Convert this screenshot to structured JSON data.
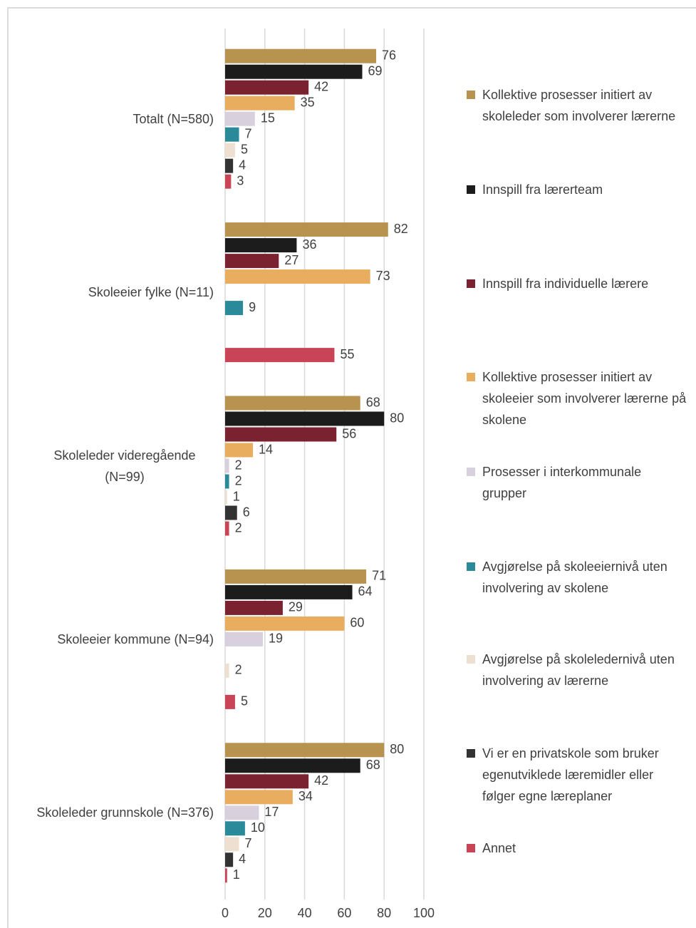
{
  "chart_data": {
    "type": "barh",
    "categories": [
      "Totalt (N=580)",
      "Skoleeier fylke (N=11)",
      "Skoleleder videregående (N=99)",
      "Skoleeier kommune (N=94)",
      "Skoleleder grunnskole (N=376)"
    ],
    "series": [
      {
        "name": "Kollektive prosesser initiert av skoleleder som involverer lærerne",
        "color": "#b8924f",
        "values": [
          76,
          82,
          68,
          71,
          80
        ]
      },
      {
        "name": "Innspill fra lærerteam",
        "color": "#1c1c1c",
        "values": [
          69,
          36,
          80,
          64,
          68
        ]
      },
      {
        "name": "Innspill fra individuelle lærere",
        "color": "#7b2230",
        "values": [
          42,
          27,
          56,
          29,
          42
        ]
      },
      {
        "name": "Kollektive prosesser initiert av skoleeier som involverer lærerne på skolene",
        "color": "#e8ad5e",
        "values": [
          35,
          73,
          14,
          60,
          34
        ]
      },
      {
        "name": "Prosesser i interkommunale grupper",
        "color": "#d9d0de",
        "values": [
          15,
          null,
          2,
          19,
          17
        ]
      },
      {
        "name": "Avgjørelse på skoleeiernivå uten involvering av skolene",
        "color": "#2a8a99",
        "values": [
          7,
          9,
          2,
          null,
          10
        ]
      },
      {
        "name": "Avgjørelse på skoleledernivå uten involvering av lærerne",
        "color": "#ede0d0",
        "values": [
          5,
          null,
          1,
          2,
          7
        ]
      },
      {
        "name": "Vi er en privatskole som bruker egenutviklede læremidler eller følger egne læreplaner",
        "color": "#333333",
        "values": [
          4,
          null,
          6,
          null,
          4
        ]
      },
      {
        "name": "Annet",
        "color": "#c94456",
        "values": [
          3,
          55,
          2,
          5,
          1
        ]
      }
    ],
    "xlim": [
      0,
      100
    ],
    "xticks": [
      0,
      20,
      40,
      60,
      80,
      100
    ],
    "grid": true,
    "legend": "right"
  }
}
